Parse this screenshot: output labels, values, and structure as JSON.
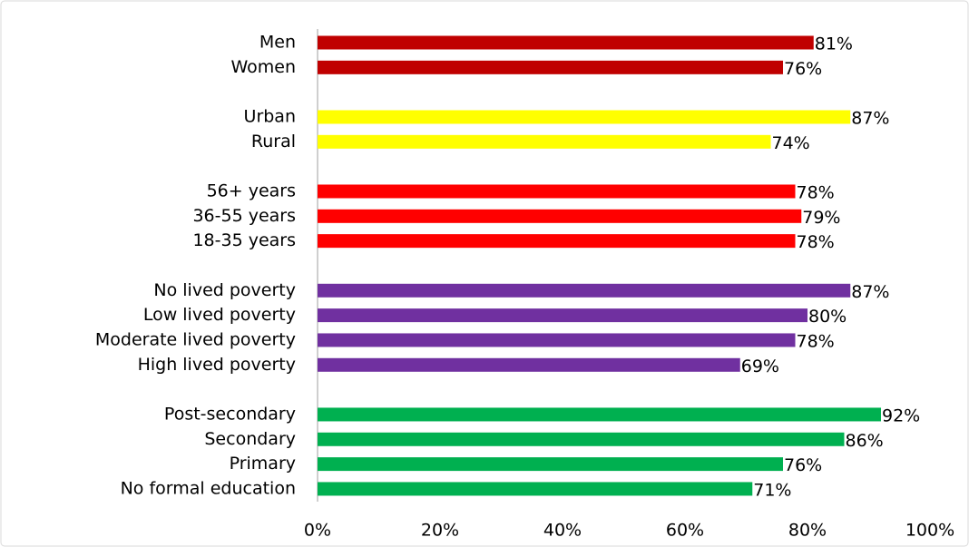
{
  "chart_data": {
    "type": "hbar",
    "categories": [
      "Men",
      "Women",
      null,
      "Urban",
      "Rural",
      null,
      "56+ years",
      "36-55 years",
      "18-35 years",
      null,
      "No lived poverty",
      "Low lived poverty",
      "Moderate lived poverty",
      "High lived poverty",
      null,
      "Post-secondary",
      "Secondary",
      "Primary",
      "No formal education"
    ],
    "values": [
      81,
      76,
      null,
      87,
      74,
      null,
      78,
      79,
      78,
      null,
      87,
      80,
      78,
      69,
      null,
      92,
      86,
      76,
      71
    ],
    "value_labels": [
      "81%",
      "76%",
      null,
      "87%",
      "74%",
      null,
      "78%",
      "79%",
      "78%",
      null,
      "87%",
      "80%",
      "78%",
      "69%",
      null,
      "92%",
      "86%",
      "76%",
      "71%"
    ],
    "colors": [
      "#c00000",
      "#c00000",
      null,
      "#ffff00",
      "#ffff00",
      null,
      "#ff0000",
      "#ff0000",
      "#ff0000",
      null,
      "#7030a0",
      "#7030a0",
      "#7030a0",
      "#7030a0",
      null,
      "#00b050",
      "#00b050",
      "#00b050",
      "#00b050"
    ],
    "xlim": [
      0,
      100
    ],
    "xticks": [
      {
        "value": 0,
        "label": "0%"
      },
      {
        "value": 20,
        "label": "20%"
      },
      {
        "value": 40,
        "label": "40%"
      },
      {
        "value": 60,
        "label": "60%"
      },
      {
        "value": 80,
        "label": "80%"
      },
      {
        "value": 100,
        "label": "100%"
      }
    ],
    "grid": false
  }
}
